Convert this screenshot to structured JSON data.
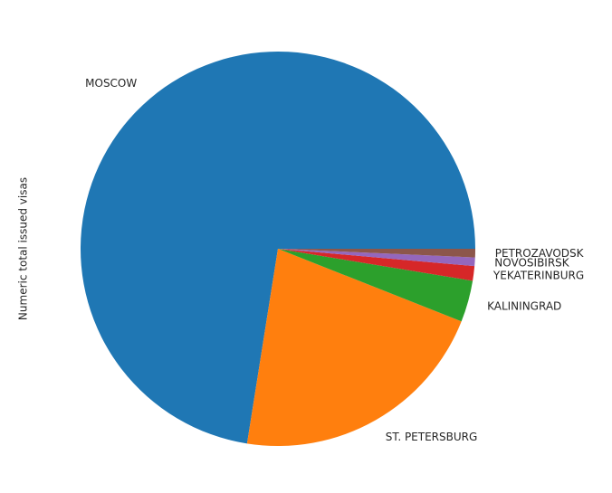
{
  "chart_data": {
    "type": "pie",
    "title": "",
    "ylabel": "Numeric total issued visas",
    "labels": [
      "MOSCOW",
      "ST. PETERSBURG",
      "KALININGRAD",
      "YEKATERINBURG",
      "NOVOSIBIRSK",
      "PETROZAVODSK"
    ],
    "values": [
      72.5,
      21.5,
      3.4,
      1.2,
      0.7,
      0.7
    ],
    "colors": [
      "#1f77b4",
      "#ff7f0e",
      "#2ca02c",
      "#d62728",
      "#9467bd",
      "#8c564b"
    ],
    "start_angle_deg": 0,
    "direction": "counterclockwise",
    "legend": "none"
  }
}
